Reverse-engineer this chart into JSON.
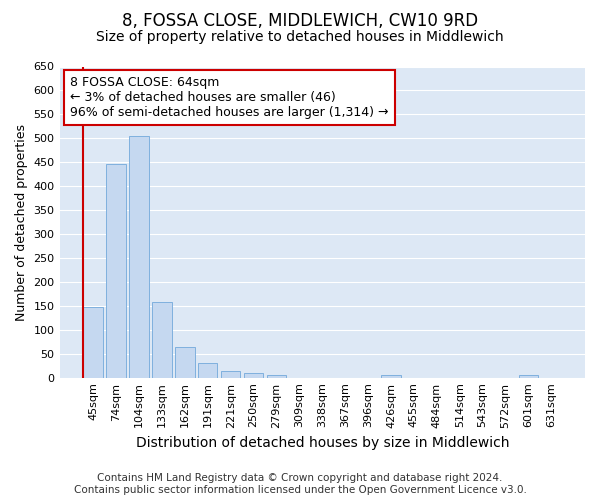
{
  "title1": "8, FOSSA CLOSE, MIDDLEWICH, CW10 9RD",
  "title2": "Size of property relative to detached houses in Middlewich",
  "xlabel": "Distribution of detached houses by size in Middlewich",
  "ylabel": "Number of detached properties",
  "categories": [
    "45sqm",
    "74sqm",
    "104sqm",
    "133sqm",
    "162sqm",
    "191sqm",
    "221sqm",
    "250sqm",
    "279sqm",
    "309sqm",
    "338sqm",
    "367sqm",
    "396sqm",
    "426sqm",
    "455sqm",
    "484sqm",
    "514sqm",
    "543sqm",
    "572sqm",
    "601sqm",
    "631sqm"
  ],
  "values": [
    148,
    447,
    505,
    158,
    65,
    30,
    13,
    10,
    5,
    0,
    0,
    0,
    0,
    5,
    0,
    0,
    0,
    0,
    0,
    5,
    0
  ],
  "bar_color": "#c5d8f0",
  "bar_edge_color": "#7fb0de",
  "red_line_x": -0.43,
  "annotation_text": "8 FOSSA CLOSE: 64sqm\n← 3% of detached houses are smaller (46)\n96% of semi-detached houses are larger (1,314) →",
  "annotation_box_edge_color": "#cc0000",
  "annotation_box_face_color": "#ffffff",
  "ylim": [
    0,
    650
  ],
  "yticks": [
    0,
    50,
    100,
    150,
    200,
    250,
    300,
    350,
    400,
    450,
    500,
    550,
    600,
    650
  ],
  "bg_color": "#ffffff",
  "plot_bg_color": "#dde8f5",
  "grid_color": "#ffffff",
  "footer_text": "Contains HM Land Registry data © Crown copyright and database right 2024.\nContains public sector information licensed under the Open Government Licence v3.0.",
  "title1_fontsize": 12,
  "title2_fontsize": 10,
  "xlabel_fontsize": 10,
  "ylabel_fontsize": 9,
  "tick_fontsize": 8,
  "annotation_fontsize": 9,
  "footer_fontsize": 7.5
}
